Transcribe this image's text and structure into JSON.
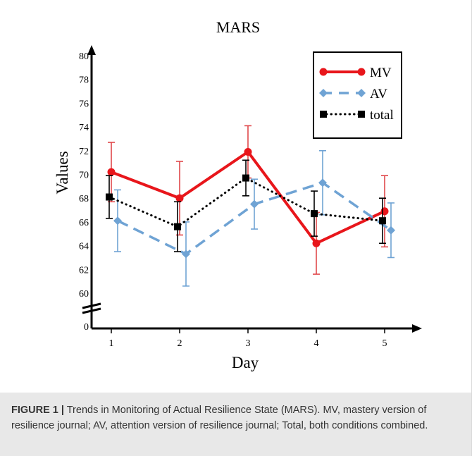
{
  "figure": {
    "caption_label": "FIGURE 1 |",
    "caption_text": " Trends in Monitoring of Actual Resilience State (MARS). MV, mastery version of resilience journal; AV, attention version of resilience journal; Total, both conditions combined."
  },
  "chart_data": {
    "type": "line",
    "title": "MARS",
    "xlabel": "Day",
    "ylabel": "Values",
    "categories": [
      "1",
      "2",
      "3",
      "4",
      "5"
    ],
    "y_ticks": [
      "60",
      "62",
      "64",
      "66",
      "68",
      "70",
      "72",
      "74",
      "76",
      "78",
      "80"
    ],
    "y_zero_label": "0",
    "ylim": [
      60,
      80
    ],
    "axis_break": true,
    "grid": false,
    "legend_position": "top-right",
    "series": [
      {
        "name": "MV",
        "color": "#e8161b",
        "line_style": "solid",
        "marker": "circle",
        "values": [
          70.2,
          68.0,
          71.9,
          64.2,
          66.9
        ],
        "error": [
          2.5,
          3.1,
          2.2,
          2.6,
          3.0
        ]
      },
      {
        "name": "AV",
        "color": "#6fa3d4",
        "line_style": "dashed",
        "marker": "diamond",
        "values": [
          66.1,
          63.3,
          67.5,
          69.3,
          65.3
        ],
        "error": [
          2.6,
          2.7,
          2.1,
          2.7,
          2.3
        ]
      },
      {
        "name": "total",
        "color": "#000000",
        "line_style": "dotted",
        "marker": "square",
        "values": [
          68.1,
          65.6,
          69.7,
          66.7,
          66.1
        ],
        "error": [
          1.8,
          2.1,
          1.5,
          1.9,
          1.9
        ]
      }
    ]
  }
}
